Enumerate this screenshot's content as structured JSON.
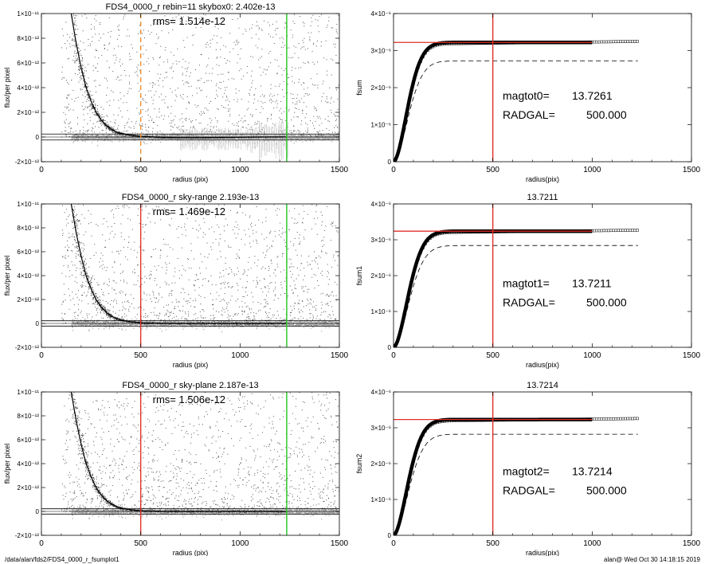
{
  "footer": {
    "path": "/data/alan/fds2/FDS4_0000_r_fsumplot1",
    "stamp": "alan@  Wed Oct 30 14:18:15 2019"
  },
  "colors": {
    "sky_marker": "#e8922e",
    "radgal_line": "#e0302a",
    "limit_line": "#22c322",
    "scatter": "#a8a8a8",
    "profile": "#000000"
  },
  "chart_data": [
    {
      "type": "scatter",
      "title": "FDS4_0000_r rebin=11    skybox0:  2.402e-13",
      "annotation": "rms= 1.514e-12",
      "xlabel": "radius (pix)",
      "ylabel": "flux/per pixel",
      "xlim": [
        0,
        1500
      ],
      "ylim": [
        -2e-12,
        1e-11
      ],
      "xticks": [
        "0",
        "500",
        "1000",
        "1500"
      ],
      "yticks": [
        "-2×10⁻¹²",
        "0",
        "2×10⁻¹²",
        "4×10⁻¹²",
        "6×10⁻¹²",
        "8×10⁻¹²",
        "1×10⁻¹¹"
      ],
      "ytick_values": [
        -2e-12,
        0,
        2e-12,
        4e-12,
        6e-12,
        8e-12,
        1e-11
      ],
      "vlines": [
        {
          "x": 500,
          "color": "sky_marker",
          "style": "dashed"
        },
        {
          "x": 1235,
          "color": "limit_line",
          "style": "solid"
        }
      ],
      "hlines": [
        2.4e-13,
        -2.4e-13
      ],
      "profile": {
        "x": [
          150,
          175,
          200,
          225,
          250,
          275,
          300,
          325,
          350,
          375,
          400,
          450,
          500,
          600,
          700,
          800,
          900,
          1000,
          1100,
          1230
        ],
        "y": [
          1e-11,
          7.6e-12,
          5.6e-12,
          4e-12,
          2.9e-12,
          2e-12,
          1.4e-12,
          9.5e-13,
          6.4e-13,
          4.3e-13,
          2.9e-13,
          1.4e-13,
          6e-14,
          -2e-14,
          -5e-14,
          -5e-14,
          -4e-14,
          -2e-14,
          0,
          1e-14
        ]
      },
      "error_bars": true
    },
    {
      "type": "line",
      "title": "",
      "xlabel": "radius(pix)",
      "ylabel": "fsum",
      "xlim": [
        0,
        1500
      ],
      "ylim": [
        0,
        4e-06
      ],
      "xticks": [
        "0",
        "500",
        "1000",
        "1500"
      ],
      "yticks": [
        "0",
        "1×10⁻⁶",
        "2×10⁻⁶",
        "3×10⁻⁶",
        "4×10⁻⁶"
      ],
      "ytick_values": [
        0,
        1e-06,
        2e-06,
        3e-06,
        4e-06
      ],
      "plateau": 3.22e-06,
      "scale_r": 95,
      "dashed_plateau": 2.72e-06,
      "vline": 500,
      "hline": 3.22e-06,
      "magtot_label": "magtot0=",
      "magtot_value": "13.7261",
      "radgal_label": "RADGAL=",
      "radgal_value": "500.000"
    },
    {
      "type": "scatter",
      "title": "FDS4_0000_r sky-range  2.193e-13",
      "annotation": "rms= 1.469e-12",
      "xlabel": "radius (pix)",
      "ylabel": "flux/per pixel",
      "xlim": [
        0,
        1500
      ],
      "ylim": [
        -2e-12,
        1e-11
      ],
      "xticks": [
        "0",
        "500",
        "1000",
        "1500"
      ],
      "yticks": [
        "-2×10⁻¹²",
        "0",
        "2×10⁻¹²",
        "4×10⁻¹²",
        "6×10⁻¹²",
        "8×10⁻¹²",
        "1×10⁻¹¹"
      ],
      "ytick_values": [
        -2e-12,
        0,
        2e-12,
        4e-12,
        6e-12,
        8e-12,
        1e-11
      ],
      "vlines": [
        {
          "x": 500,
          "color": "radgal_line",
          "style": "solid"
        },
        {
          "x": 1235,
          "color": "limit_line",
          "style": "solid"
        }
      ],
      "hlines": [
        2.2e-13,
        -2.2e-13
      ],
      "profile": {
        "x": [
          150,
          175,
          200,
          225,
          250,
          275,
          300,
          325,
          350,
          375,
          400,
          450,
          500,
          600,
          700,
          800,
          900,
          1000,
          1100,
          1230
        ],
        "y": [
          1e-11,
          7.6e-12,
          5.6e-12,
          4e-12,
          2.9e-12,
          2e-12,
          1.4e-12,
          9.5e-13,
          6.4e-13,
          4.3e-13,
          2.9e-13,
          1.4e-13,
          6e-14,
          2e-14,
          1e-14,
          1e-14,
          1e-14,
          1e-14,
          1e-14,
          1e-14
        ]
      },
      "error_bars": false
    },
    {
      "type": "line",
      "title": "13.7211",
      "xlabel": "radius(pix)",
      "ylabel": "fsum1",
      "xlim": [
        0,
        1500
      ],
      "ylim": [
        0,
        4e-06
      ],
      "xticks": [
        "0",
        "500",
        "1000",
        "1500"
      ],
      "yticks": [
        "0",
        "1×10⁻⁶",
        "2×10⁻⁶",
        "3×10⁻⁶",
        "4×10⁻⁶"
      ],
      "ytick_values": [
        0,
        1e-06,
        2e-06,
        3e-06,
        4e-06
      ],
      "plateau": 3.24e-06,
      "scale_r": 100,
      "dashed_plateau": 2.84e-06,
      "vline": 500,
      "hline": 3.24e-06,
      "magtot_label": "magtot1=",
      "magtot_value": "13.7211",
      "radgal_label": "RADGAL=",
      "radgal_value": "500.000"
    },
    {
      "type": "scatter",
      "title": "FDS4_0000_r sky-plane  2.187e-13",
      "annotation": "rms= 1.506e-12",
      "xlabel": "radius (pix)",
      "ylabel": "flux/per pixel",
      "xlim": [
        0,
        1500
      ],
      "ylim": [
        -2e-12,
        1e-11
      ],
      "xticks": [
        "0",
        "500",
        "1000",
        "1500"
      ],
      "yticks": [
        "-2×10⁻¹²",
        "0",
        "2×10⁻¹²",
        "4×10⁻¹²",
        "6×10⁻¹²",
        "8×10⁻¹²",
        "1×10⁻¹¹"
      ],
      "ytick_values": [
        -2e-12,
        0,
        2e-12,
        4e-12,
        6e-12,
        8e-12,
        1e-11
      ],
      "vlines": [
        {
          "x": 500,
          "color": "radgal_line",
          "style": "solid"
        },
        {
          "x": 1235,
          "color": "limit_line",
          "style": "solid"
        }
      ],
      "hlines": [
        2.2e-13,
        -2.2e-13
      ],
      "profile": {
        "x": [
          150,
          175,
          200,
          225,
          250,
          275,
          300,
          325,
          350,
          375,
          400,
          450,
          500,
          600,
          700,
          800,
          900,
          1000,
          1100,
          1230
        ],
        "y": [
          1e-11,
          7.6e-12,
          5.6e-12,
          4e-12,
          2.9e-12,
          2e-12,
          1.4e-12,
          9.5e-13,
          6.4e-13,
          4.3e-13,
          2.9e-13,
          1.4e-13,
          6e-14,
          2e-14,
          1e-14,
          1e-14,
          1e-14,
          1e-14,
          1e-14,
          1e-14
        ]
      },
      "error_bars": false
    },
    {
      "type": "line",
      "title": "13.7214",
      "xlabel": "radius(pix)",
      "ylabel": "fsum2",
      "xlim": [
        0,
        1500
      ],
      "ylim": [
        0,
        4e-06
      ],
      "xticks": [
        "0",
        "500",
        "1000",
        "1500"
      ],
      "yticks": [
        "0",
        "1×10⁻⁶",
        "2×10⁻⁶",
        "3×10⁻⁶",
        "4×10⁻⁶"
      ],
      "ytick_values": [
        0,
        1e-06,
        2e-06,
        3e-06,
        4e-06
      ],
      "plateau": 3.23e-06,
      "scale_r": 98,
      "dashed_plateau": 2.82e-06,
      "vline": 500,
      "hline": 3.23e-06,
      "magtot_label": "magtot2=",
      "magtot_value": "13.7214",
      "radgal_label": "RADGAL=",
      "radgal_value": "500.000"
    }
  ]
}
